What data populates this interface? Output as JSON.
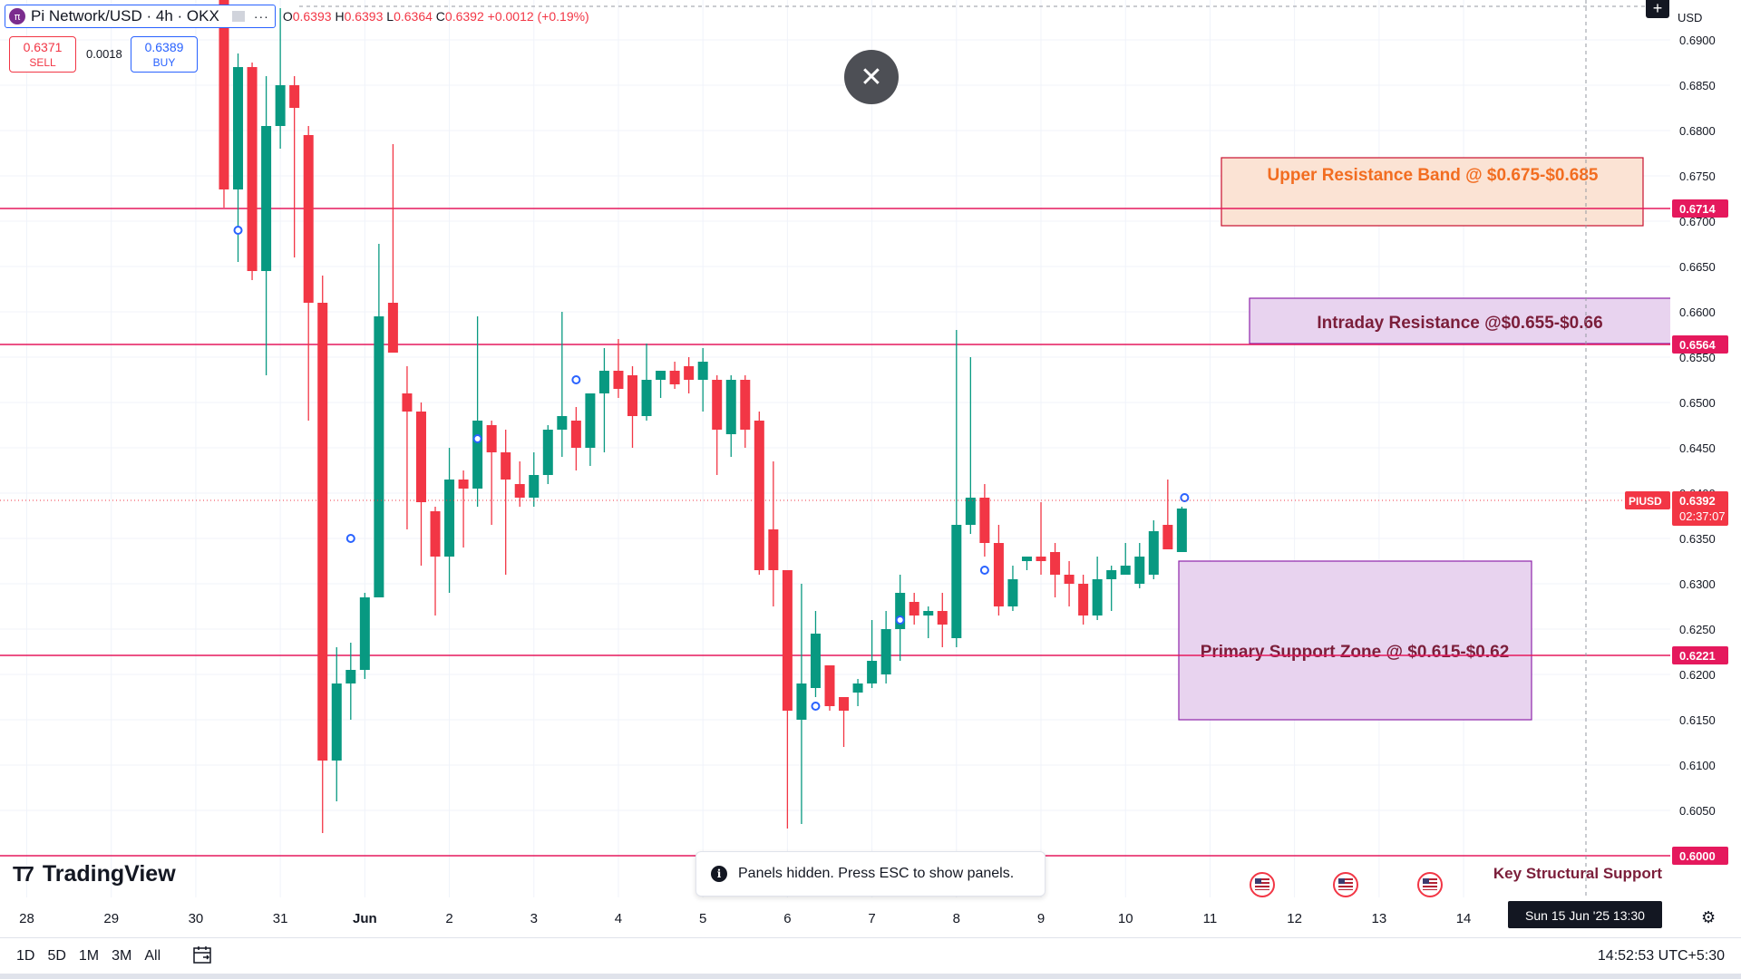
{
  "legend": {
    "logo_char": "π",
    "symbol_title": "Pi Network/USD · 4h · OKX",
    "more_icon": "···",
    "open_label": "O",
    "open": "0.6393",
    "high_label": "H",
    "high": "0.6393",
    "low_label": "L",
    "low": "0.6364",
    "close_label": "C",
    "close": "0.6392",
    "change": "+0.0012 (+0.19%)"
  },
  "trade": {
    "sell_price": "0.6371",
    "sell_label": "SELL",
    "spread": "0.0018",
    "buy_price": "0.6389",
    "buy_label": "BUY"
  },
  "price_scale": {
    "currency": "USD",
    "ticks": [
      "0.6900",
      "0.6850",
      "0.6800",
      "0.6750",
      "0.6700",
      "0.6650",
      "0.6600",
      "0.6550",
      "0.6500",
      "0.6450",
      "0.6400",
      "0.6350",
      "0.6300",
      "0.6250",
      "0.6200",
      "0.6150",
      "0.6100",
      "0.6050",
      "0.6000"
    ],
    "level_labels": [
      "0.6714",
      "0.6564",
      "0.6221",
      "0.6000"
    ],
    "current_symbol": "PIUSD",
    "current_price": "0.6392",
    "countdown": "02:37:07"
  },
  "time_axis": {
    "ticks": [
      "28",
      "29",
      "30",
      "31",
      "Jun",
      "2",
      "3",
      "4",
      "5",
      "6",
      "7",
      "8",
      "9",
      "10",
      "11",
      "12",
      "13",
      "14"
    ],
    "crosshair_label": "Sun 15 Jun '25   13:30"
  },
  "annotations": {
    "upper_resistance": "Upper Resistance Band @ $0.675-$0.685",
    "intraday_resistance": "Intraday Resistance @$0.655-$0.66",
    "primary_support": "Primary Support Zone @ $0.615-$0.62",
    "key_support": "Key Structural Support"
  },
  "colors": {
    "up": "#089981",
    "down": "#f23645",
    "level_line": "#e5195d",
    "upper_box_fill": "#fbe3d4",
    "upper_box_border": "#c8102e",
    "upper_text": "#f26d21",
    "purple_fill": "#e8d3ef",
    "purple_border": "#8e24aa",
    "purple_text": "#7b1e3a"
  },
  "chart_data": {
    "type": "candlestick",
    "title": "Pi Network/USD · 4h · OKX",
    "ylim": [
      0.5985,
      0.6925
    ],
    "x_label_indices": [
      0,
      6,
      12,
      18,
      24,
      30,
      36,
      42,
      48,
      54,
      60,
      66,
      72,
      78,
      84,
      90,
      96,
      102
    ],
    "x_labels": [
      "28",
      "29",
      "30",
      "31",
      "Jun",
      "2",
      "3",
      "4",
      "5",
      "6",
      "7",
      "8",
      "9",
      "10",
      "11",
      "12",
      "13",
      "14"
    ],
    "candles": [
      [
        14,
        0.6985,
        0.6995,
        0.6715,
        0.6735
      ],
      [
        15,
        0.6735,
        0.6885,
        0.6655,
        0.687
      ],
      [
        16,
        0.687,
        0.6875,
        0.6635,
        0.6645
      ],
      [
        17,
        0.6645,
        0.686,
        0.653,
        0.6805
      ],
      [
        18,
        0.6805,
        0.6935,
        0.678,
        0.685
      ],
      [
        19,
        0.685,
        0.686,
        0.666,
        0.6825
      ],
      [
        20,
        0.6795,
        0.6805,
        0.648,
        0.661
      ],
      [
        21,
        0.661,
        0.664,
        0.6025,
        0.6105
      ],
      [
        22,
        0.6105,
        0.623,
        0.606,
        0.619
      ],
      [
        23,
        0.619,
        0.6235,
        0.615,
        0.6205
      ],
      [
        24,
        0.6205,
        0.629,
        0.6195,
        0.6285
      ],
      [
        25,
        0.6285,
        0.6675,
        0.6285,
        0.6595
      ],
      [
        26,
        0.661,
        0.6785,
        0.656,
        0.6555
      ],
      [
        27,
        0.651,
        0.654,
        0.636,
        0.649
      ],
      [
        28,
        0.649,
        0.65,
        0.632,
        0.639
      ],
      [
        29,
        0.638,
        0.6385,
        0.6265,
        0.633
      ],
      [
        30,
        0.633,
        0.645,
        0.629,
        0.6415
      ],
      [
        31,
        0.6415,
        0.6425,
        0.634,
        0.6405
      ],
      [
        32,
        0.6405,
        0.6595,
        0.6385,
        0.648
      ],
      [
        33,
        0.6475,
        0.648,
        0.6365,
        0.6445
      ],
      [
        34,
        0.6445,
        0.647,
        0.631,
        0.6415
      ],
      [
        35,
        0.641,
        0.6435,
        0.6385,
        0.6395
      ],
      [
        36,
        0.6395,
        0.6445,
        0.6385,
        0.642
      ],
      [
        37,
        0.642,
        0.6475,
        0.641,
        0.647
      ],
      [
        38,
        0.647,
        0.66,
        0.644,
        0.6485
      ],
      [
        39,
        0.648,
        0.6495,
        0.6425,
        0.645
      ],
      [
        40,
        0.645,
        0.651,
        0.643,
        0.651
      ],
      [
        41,
        0.651,
        0.656,
        0.6445,
        0.6535
      ],
      [
        42,
        0.6535,
        0.657,
        0.6505,
        0.6515
      ],
      [
        43,
        0.653,
        0.654,
        0.645,
        0.6485
      ],
      [
        44,
        0.6485,
        0.6565,
        0.648,
        0.6525
      ],
      [
        45,
        0.6525,
        0.6535,
        0.6505,
        0.6535
      ],
      [
        46,
        0.6535,
        0.6545,
        0.6515,
        0.652
      ],
      [
        47,
        0.654,
        0.655,
        0.651,
        0.6525
      ],
      [
        48,
        0.6525,
        0.656,
        0.649,
        0.6545
      ],
      [
        49,
        0.6525,
        0.653,
        0.642,
        0.647
      ],
      [
        50,
        0.6465,
        0.653,
        0.644,
        0.6525
      ],
      [
        51,
        0.6525,
        0.653,
        0.645,
        0.647
      ],
      [
        52,
        0.648,
        0.649,
        0.631,
        0.6315
      ],
      [
        53,
        0.636,
        0.6435,
        0.6275,
        0.6315
      ],
      [
        54,
        0.6315,
        0.631,
        0.603,
        0.616
      ],
      [
        55,
        0.615,
        0.63,
        0.6035,
        0.619
      ],
      [
        56,
        0.6185,
        0.627,
        0.6175,
        0.6245
      ],
      [
        57,
        0.621,
        0.6205,
        0.616,
        0.6165
      ],
      [
        58,
        0.6175,
        0.6175,
        0.612,
        0.616
      ],
      [
        59,
        0.618,
        0.6195,
        0.6165,
        0.619
      ],
      [
        60,
        0.619,
        0.626,
        0.6185,
        0.6215
      ],
      [
        61,
        0.62,
        0.627,
        0.619,
        0.625
      ],
      [
        62,
        0.625,
        0.631,
        0.6215,
        0.629
      ],
      [
        63,
        0.628,
        0.629,
        0.6255,
        0.6265
      ],
      [
        64,
        0.6265,
        0.6275,
        0.624,
        0.627
      ],
      [
        65,
        0.627,
        0.629,
        0.623,
        0.6255
      ],
      [
        66,
        0.624,
        0.658,
        0.623,
        0.6365
      ],
      [
        67,
        0.6365,
        0.655,
        0.6355,
        0.6395
      ],
      [
        68,
        0.6395,
        0.641,
        0.633,
        0.6345
      ],
      [
        69,
        0.6345,
        0.6365,
        0.6265,
        0.6275
      ],
      [
        70,
        0.6275,
        0.632,
        0.627,
        0.6305
      ],
      [
        71,
        0.6325,
        0.633,
        0.6315,
        0.633
      ],
      [
        72,
        0.633,
        0.639,
        0.631,
        0.6325
      ],
      [
        73,
        0.6335,
        0.6345,
        0.6285,
        0.631
      ],
      [
        74,
        0.631,
        0.6325,
        0.6275,
        0.63
      ],
      [
        75,
        0.63,
        0.631,
        0.6255,
        0.6265
      ],
      [
        76,
        0.6265,
        0.633,
        0.626,
        0.6305
      ],
      [
        77,
        0.6305,
        0.632,
        0.627,
        0.6315
      ],
      [
        78,
        0.631,
        0.6345,
        0.631,
        0.632
      ],
      [
        79,
        0.63,
        0.6345,
        0.6295,
        0.633
      ],
      [
        80,
        0.631,
        0.637,
        0.6305,
        0.6358
      ],
      [
        81,
        0.6365,
        0.6415,
        0.634,
        0.6338
      ],
      [
        82,
        0.6335,
        0.6385,
        0.6335,
        0.6383
      ]
    ]
  }
}
